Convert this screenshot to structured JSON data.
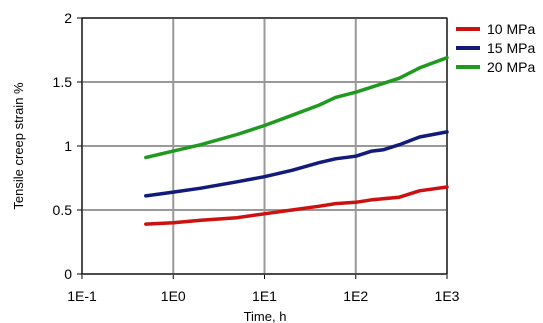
{
  "chart_data": {
    "type": "line",
    "title": "",
    "xlabel": "Time, h",
    "ylabel": "Tensile creep strain  %",
    "x_scale": "log",
    "xlim": [
      0.1,
      1000
    ],
    "ylim": [
      0,
      2
    ],
    "x_ticks": [
      "1E-1",
      "1E0",
      "1E1",
      "1E2",
      "1E3"
    ],
    "y_ticks": [
      "0",
      "0.5",
      "1",
      "1.5",
      "2"
    ],
    "grid": true,
    "legend_position": "top-right",
    "series": [
      {
        "name": "10 MPa",
        "color": "#cc1111",
        "x": [
          0.5,
          1,
          2,
          5,
          10,
          20,
          40,
          60,
          100,
          150,
          300,
          500,
          1000
        ],
        "y": [
          0.39,
          0.4,
          0.42,
          0.44,
          0.47,
          0.5,
          0.53,
          0.55,
          0.56,
          0.58,
          0.6,
          0.65,
          0.68
        ]
      },
      {
        "name": "15 MPa",
        "color": "#121a7a",
        "x": [
          0.5,
          1,
          2,
          5,
          10,
          20,
          40,
          60,
          100,
          150,
          200,
          300,
          500,
          1000
        ],
        "y": [
          0.61,
          0.64,
          0.67,
          0.72,
          0.76,
          0.81,
          0.87,
          0.9,
          0.92,
          0.96,
          0.97,
          1.01,
          1.07,
          1.11
        ]
      },
      {
        "name": "20 MPa",
        "color": "#1f9a1f",
        "x": [
          0.5,
          1,
          2,
          5,
          10,
          20,
          40,
          60,
          100,
          150,
          300,
          500,
          1000
        ],
        "y": [
          0.91,
          0.96,
          1.01,
          1.09,
          1.16,
          1.24,
          1.32,
          1.38,
          1.42,
          1.46,
          1.53,
          1.61,
          1.69
        ]
      }
    ]
  }
}
